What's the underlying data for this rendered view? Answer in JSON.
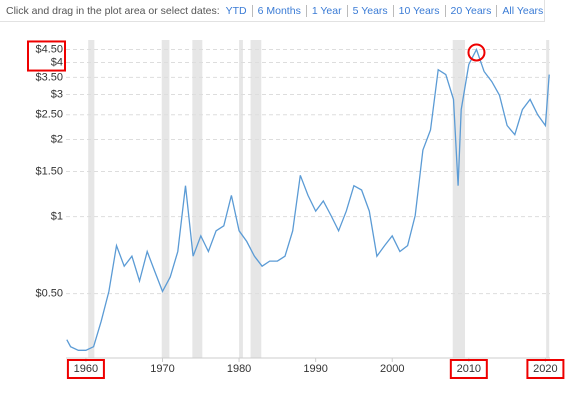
{
  "range_selector": {
    "prompt": "Click and drag in the plot area or select dates:",
    "options": [
      "YTD",
      "6 Months",
      "1 Year",
      "5 Years",
      "10 Years",
      "20 Years",
      "All Years"
    ]
  },
  "chart_data": {
    "type": "line",
    "log_y": true,
    "grid": true,
    "color": "#5b9bd5",
    "x": [
      1957.5,
      1958,
      1959,
      1960,
      1961,
      1962,
      1963,
      1964,
      1965,
      1966,
      1967,
      1968,
      1969,
      1970,
      1971,
      1972,
      1973,
      1974,
      1975,
      1976,
      1977,
      1978,
      1979,
      1980,
      1981,
      1982,
      1983,
      1984,
      1985,
      1986,
      1987,
      1988,
      1989,
      1990,
      1991,
      1992,
      1993,
      1994,
      1995,
      1996,
      1997,
      1998,
      1999,
      2000,
      2001,
      2002,
      2003,
      2004,
      2005,
      2006,
      2007,
      2008,
      2008.6,
      2009,
      2010,
      2011,
      2012,
      2013,
      2014,
      2015,
      2016,
      2017,
      2018,
      2019,
      2020,
      2020.5
    ],
    "values": [
      0.33,
      0.31,
      0.3,
      0.3,
      0.31,
      0.39,
      0.51,
      0.77,
      0.64,
      0.7,
      0.56,
      0.73,
      0.61,
      0.51,
      0.58,
      0.73,
      1.32,
      0.7,
      0.84,
      0.73,
      0.88,
      0.92,
      1.21,
      0.88,
      0.8,
      0.7,
      0.64,
      0.67,
      0.67,
      0.7,
      0.88,
      1.45,
      1.21,
      1.05,
      1.15,
      1.01,
      0.88,
      1.05,
      1.32,
      1.27,
      1.05,
      0.7,
      0.77,
      0.84,
      0.73,
      0.77,
      1.01,
      1.82,
      2.18,
      3.75,
      3.59,
      2.87,
      1.32,
      2.62,
      3.93,
      4.5,
      3.69,
      3.37,
      2.98,
      2.27,
      2.09,
      2.62,
      2.87,
      2.5,
      2.27,
      3.59
    ],
    "shaded_ranges": [
      [
        1960.3,
        1961.1
      ],
      [
        1969.9,
        1970.9
      ],
      [
        1973.9,
        1975.2
      ],
      [
        1980.0,
        1980.5
      ],
      [
        1981.5,
        1982.9
      ],
      [
        2007.9,
        2009.5
      ],
      [
        2020.1,
        2020.4
      ]
    ],
    "xlim": [
      1957.4,
      2020.6
    ],
    "xticks": [
      1960,
      1970,
      1980,
      1990,
      2000,
      2010,
      2020
    ],
    "ylim": [
      0.28,
      4.9
    ],
    "yticks": [
      {
        "value": 0.5,
        "label": "$0.50"
      },
      {
        "value": 1,
        "label": "$1"
      },
      {
        "value": 1.5,
        "label": "$1.50"
      },
      {
        "value": 2,
        "label": "$2"
      },
      {
        "value": 2.5,
        "label": "$2.50"
      },
      {
        "value": 3,
        "label": "$3"
      },
      {
        "value": 3.5,
        "label": "$3.50"
      },
      {
        "value": 4,
        "label": "$4"
      },
      {
        "value": 4.5,
        "label": "$4.50"
      }
    ]
  }
}
